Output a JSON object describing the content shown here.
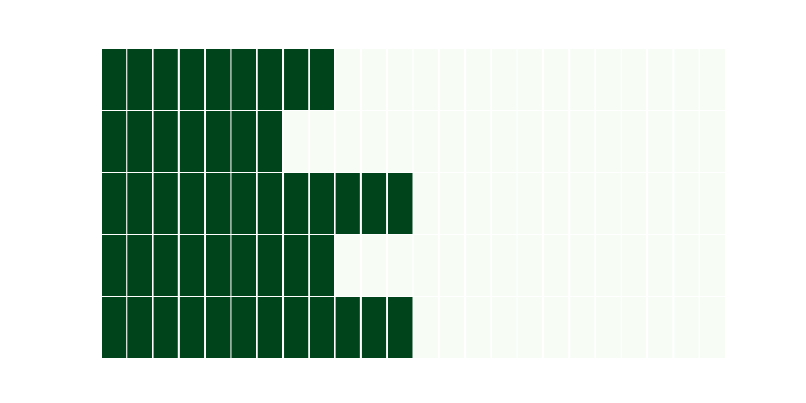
{
  "chart_data": {
    "type": "heatmap",
    "rows": 5,
    "columns": 24,
    "values": [
      9,
      7,
      12,
      9,
      12
    ],
    "colors": {
      "filled": "#00441b",
      "empty": "#f7fcf5",
      "grid": "#ffffff"
    },
    "title": "",
    "xlabel": "",
    "ylabel": "",
    "grid": true
  }
}
